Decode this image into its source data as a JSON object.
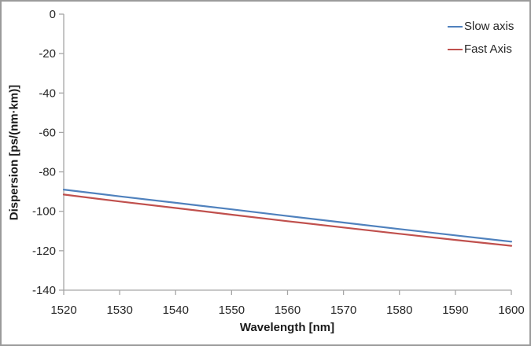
{
  "chart_data": {
    "type": "line",
    "title": "",
    "xlabel": "Wavelength [nm]",
    "ylabel": "Dispersion [ps/(nm·km)]",
    "x": [
      1520,
      1530,
      1540,
      1550,
      1560,
      1570,
      1580,
      1590,
      1600
    ],
    "x_ticks": [
      1520,
      1530,
      1540,
      1550,
      1560,
      1570,
      1580,
      1590,
      1600
    ],
    "y_ticks": [
      0,
      -20,
      -40,
      -60,
      -80,
      -100,
      -120,
      -140
    ],
    "xlim": [
      1520,
      1600
    ],
    "ylim": [
      -140,
      0
    ],
    "grid": false,
    "legend_position": "top-right-inside",
    "axis_color": "#a6a6a6",
    "text_color": "#262626",
    "series": [
      {
        "name": "Slow axis",
        "color": "#4f81bd",
        "values": [
          -89.0,
          -92.4,
          -95.7,
          -99.0,
          -102.4,
          -105.7,
          -109.0,
          -112.2,
          -115.4
        ]
      },
      {
        "name": "Fast Axis",
        "color": "#c0504d",
        "values": [
          -91.5,
          -95.0,
          -98.3,
          -101.7,
          -105.0,
          -108.2,
          -111.4,
          -114.5,
          -117.5
        ]
      }
    ]
  }
}
